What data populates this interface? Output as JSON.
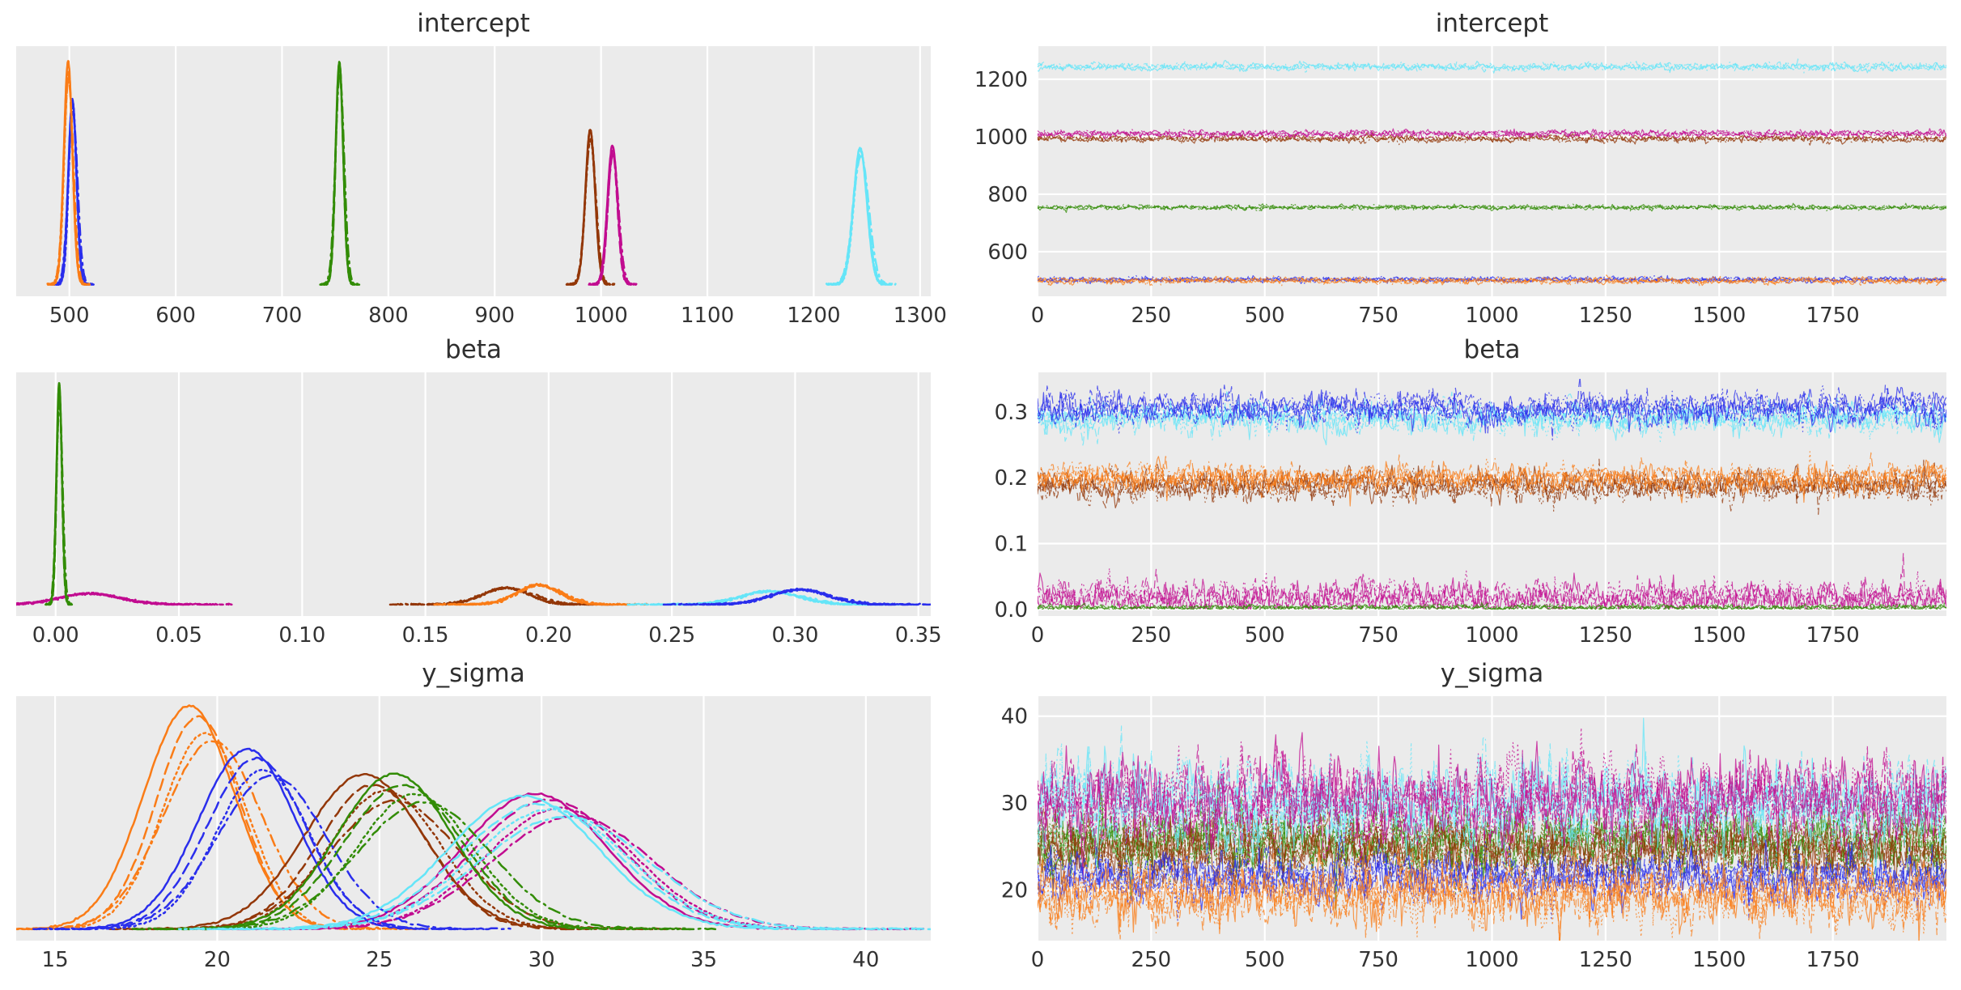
{
  "figure": {
    "background": "#ffffff",
    "panel_background": "#ebebeb",
    "grid_color": "#ffffff",
    "text_color": "#333333"
  },
  "palette": {
    "blue": "#2a2eec",
    "orange": "#fa7c17",
    "green": "#328c06",
    "magenta": "#c10c90",
    "brown": "#933708",
    "cyan": "#65e5f8"
  },
  "chains_per_group": 4,
  "chain_linestyles": [
    "solid",
    "dashed",
    "dotted",
    "dashdot"
  ],
  "chart_data": [
    {
      "id": "intercept-kde",
      "title": "intercept",
      "type": "line",
      "subtype": "kde",
      "xlim": [
        450,
        1310
      ],
      "xticks": [
        500,
        600,
        700,
        800,
        900,
        1000,
        1100,
        1200,
        1300
      ],
      "xtick_labels": [
        "500",
        "600",
        "700",
        "800",
        "900",
        "1000",
        "1100",
        "1200",
        "1300"
      ],
      "yticks": [],
      "ytick_labels": [],
      "chain_jitter": 0.05,
      "series": [
        {
          "name": "blue",
          "color": "#2a2eec",
          "mean": 503,
          "sd": 3.8,
          "amp": 0.8
        },
        {
          "name": "orange",
          "color": "#fa7c17",
          "mean": 499,
          "sd": 4.0,
          "amp": 0.94
        },
        {
          "name": "brown",
          "color": "#933708",
          "mean": 990,
          "sd": 4.6,
          "amp": 0.66
        },
        {
          "name": "magenta",
          "color": "#c10c90",
          "mean": 1011,
          "sd": 4.6,
          "amp": 0.59
        },
        {
          "name": "green",
          "color": "#328c06",
          "mean": 754,
          "sd": 3.6,
          "amp": 0.96
        },
        {
          "name": "cyan",
          "color": "#65e5f8",
          "mean": 1244,
          "sd": 6.5,
          "amp": 0.59
        }
      ]
    },
    {
      "id": "intercept-trace",
      "title": "intercept",
      "type": "line",
      "subtype": "trace",
      "xlim": [
        0,
        2000
      ],
      "xticks": [
        0,
        250,
        500,
        750,
        1000,
        1250,
        1500,
        1750
      ],
      "xtick_labels": [
        "0",
        "250",
        "500",
        "750",
        "1000",
        "1250",
        "1500",
        "1750"
      ],
      "ylim": [
        445,
        1315
      ],
      "yticks": [
        600,
        800,
        1000,
        1200
      ],
      "ytick_labels": [
        "600",
        "800",
        "1000",
        "1200"
      ],
      "series": [
        {
          "name": "blue",
          "color": "#2a2eec",
          "mean": 503,
          "sd": 4.5
        },
        {
          "name": "orange",
          "color": "#fa7c17",
          "mean": 499,
          "sd": 5.5
        },
        {
          "name": "brown",
          "color": "#933708",
          "mean": 993,
          "sd": 6.0
        },
        {
          "name": "magenta",
          "color": "#c10c90",
          "mean": 1011,
          "sd": 6.0
        },
        {
          "name": "green",
          "color": "#328c06",
          "mean": 754,
          "sd": 4.0
        },
        {
          "name": "cyan",
          "color": "#65e5f8",
          "mean": 1243,
          "sd": 6.5
        }
      ]
    },
    {
      "id": "beta-kde",
      "title": "beta",
      "type": "line",
      "subtype": "kde",
      "xlim": [
        -0.016,
        0.355
      ],
      "xticks": [
        0.0,
        0.05,
        0.1,
        0.15,
        0.2,
        0.25,
        0.3,
        0.35
      ],
      "xtick_labels": [
        "0.00",
        "0.05",
        "0.10",
        "0.15",
        "0.20",
        "0.25",
        "0.30",
        "0.35"
      ],
      "yticks": [],
      "ytick_labels": [],
      "chain_jitter": 0.05,
      "series": [
        {
          "name": "magenta",
          "color": "#c10c90",
          "mean": 0.014,
          "sd": 0.012,
          "amp": 0.05
        },
        {
          "name": "green",
          "color": "#328c06",
          "mean": 0.0015,
          "sd": 0.0011,
          "amp": 0.96
        },
        {
          "name": "brown",
          "color": "#933708",
          "mean": 0.183,
          "sd": 0.0095,
          "amp": 0.075
        },
        {
          "name": "orange",
          "color": "#fa7c17",
          "mean": 0.196,
          "sd": 0.0085,
          "amp": 0.088
        },
        {
          "name": "cyan",
          "color": "#65e5f8",
          "mean": 0.29,
          "sd": 0.0115,
          "amp": 0.06
        },
        {
          "name": "blue",
          "color": "#2a2eec",
          "mean": 0.302,
          "sd": 0.011,
          "amp": 0.068
        }
      ]
    },
    {
      "id": "beta-trace",
      "title": "beta",
      "type": "line",
      "subtype": "trace",
      "xlim": [
        0,
        2000
      ],
      "xticks": [
        0,
        250,
        500,
        750,
        1000,
        1250,
        1500,
        1750
      ],
      "xtick_labels": [
        "0",
        "250",
        "500",
        "750",
        "1000",
        "1250",
        "1500",
        "1750"
      ],
      "ylim": [
        -0.01,
        0.36
      ],
      "yticks": [
        0.0,
        0.1,
        0.2,
        0.3
      ],
      "ytick_labels": [
        "0.0",
        "0.1",
        "0.2",
        "0.3"
      ],
      "series": [
        {
          "name": "magenta",
          "color": "#c10c90",
          "mean": 0.017,
          "sd": 0.013,
          "clip_min": 0.0005
        },
        {
          "name": "green",
          "color": "#328c06",
          "mean": 0.003,
          "sd": 0.0022,
          "clip_min": 0.0003
        },
        {
          "name": "brown",
          "color": "#933708",
          "mean": 0.188,
          "sd": 0.011
        },
        {
          "name": "orange",
          "color": "#fa7c17",
          "mean": 0.2,
          "sd": 0.011
        },
        {
          "name": "cyan",
          "color": "#65e5f8",
          "mean": 0.291,
          "sd": 0.012
        },
        {
          "name": "blue",
          "color": "#2a2eec",
          "mean": 0.305,
          "sd": 0.012
        }
      ]
    },
    {
      "id": "y_sigma-kde",
      "title": "y_sigma",
      "type": "line",
      "subtype": "kde",
      "xlim": [
        13.8,
        42.0
      ],
      "xticks": [
        15,
        20,
        25,
        30,
        35,
        40
      ],
      "xtick_labels": [
        "15",
        "20",
        "25",
        "30",
        "35",
        "40"
      ],
      "yticks": [],
      "ytick_labels": [],
      "chain_jitter": 0.22,
      "series": [
        {
          "name": "orange",
          "color": "#fa7c17",
          "mean": 19.5,
          "sd": 1.35,
          "amp": 0.97
        },
        {
          "name": "brown",
          "color": "#933708",
          "mean": 25.0,
          "sd": 1.75,
          "amp": 0.68
        },
        {
          "name": "magenta",
          "color": "#c10c90",
          "mean": 30.4,
          "sd": 2.3,
          "amp": 0.6
        },
        {
          "name": "blue",
          "color": "#2a2eec",
          "mean": 21.3,
          "sd": 1.45,
          "amp": 0.8
        },
        {
          "name": "green",
          "color": "#328c06",
          "mean": 25.9,
          "sd": 1.75,
          "amp": 0.67
        },
        {
          "name": "cyan",
          "color": "#65e5f8",
          "mean": 30.1,
          "sd": 2.3,
          "amp": 0.58
        }
      ]
    },
    {
      "id": "y_sigma-trace",
      "title": "y_sigma",
      "type": "line",
      "subtype": "trace",
      "xlim": [
        0,
        2000
      ],
      "xticks": [
        0,
        250,
        500,
        750,
        1000,
        1250,
        1500,
        1750
      ],
      "xtick_labels": [
        "0",
        "250",
        "500",
        "750",
        "1000",
        "1250",
        "1500",
        "1750"
      ],
      "ylim": [
        14.2,
        42.3
      ],
      "yticks": [
        20,
        30,
        40
      ],
      "ytick_labels": [
        "20",
        "30",
        "40"
      ],
      "series": [
        {
          "name": "green",
          "color": "#328c06",
          "mean": 25.7,
          "sd": 1.8
        },
        {
          "name": "brown",
          "color": "#933708",
          "mean": 25.0,
          "sd": 1.8
        },
        {
          "name": "cyan",
          "color": "#65e5f8",
          "mean": 30.0,
          "sd": 2.4
        },
        {
          "name": "magenta",
          "color": "#c10c90",
          "mean": 30.4,
          "sd": 2.4
        },
        {
          "name": "blue",
          "color": "#2a2eec",
          "mean": 21.5,
          "sd": 1.3
        },
        {
          "name": "orange",
          "color": "#fa7c17",
          "mean": 19.3,
          "sd": 1.7
        }
      ]
    }
  ]
}
